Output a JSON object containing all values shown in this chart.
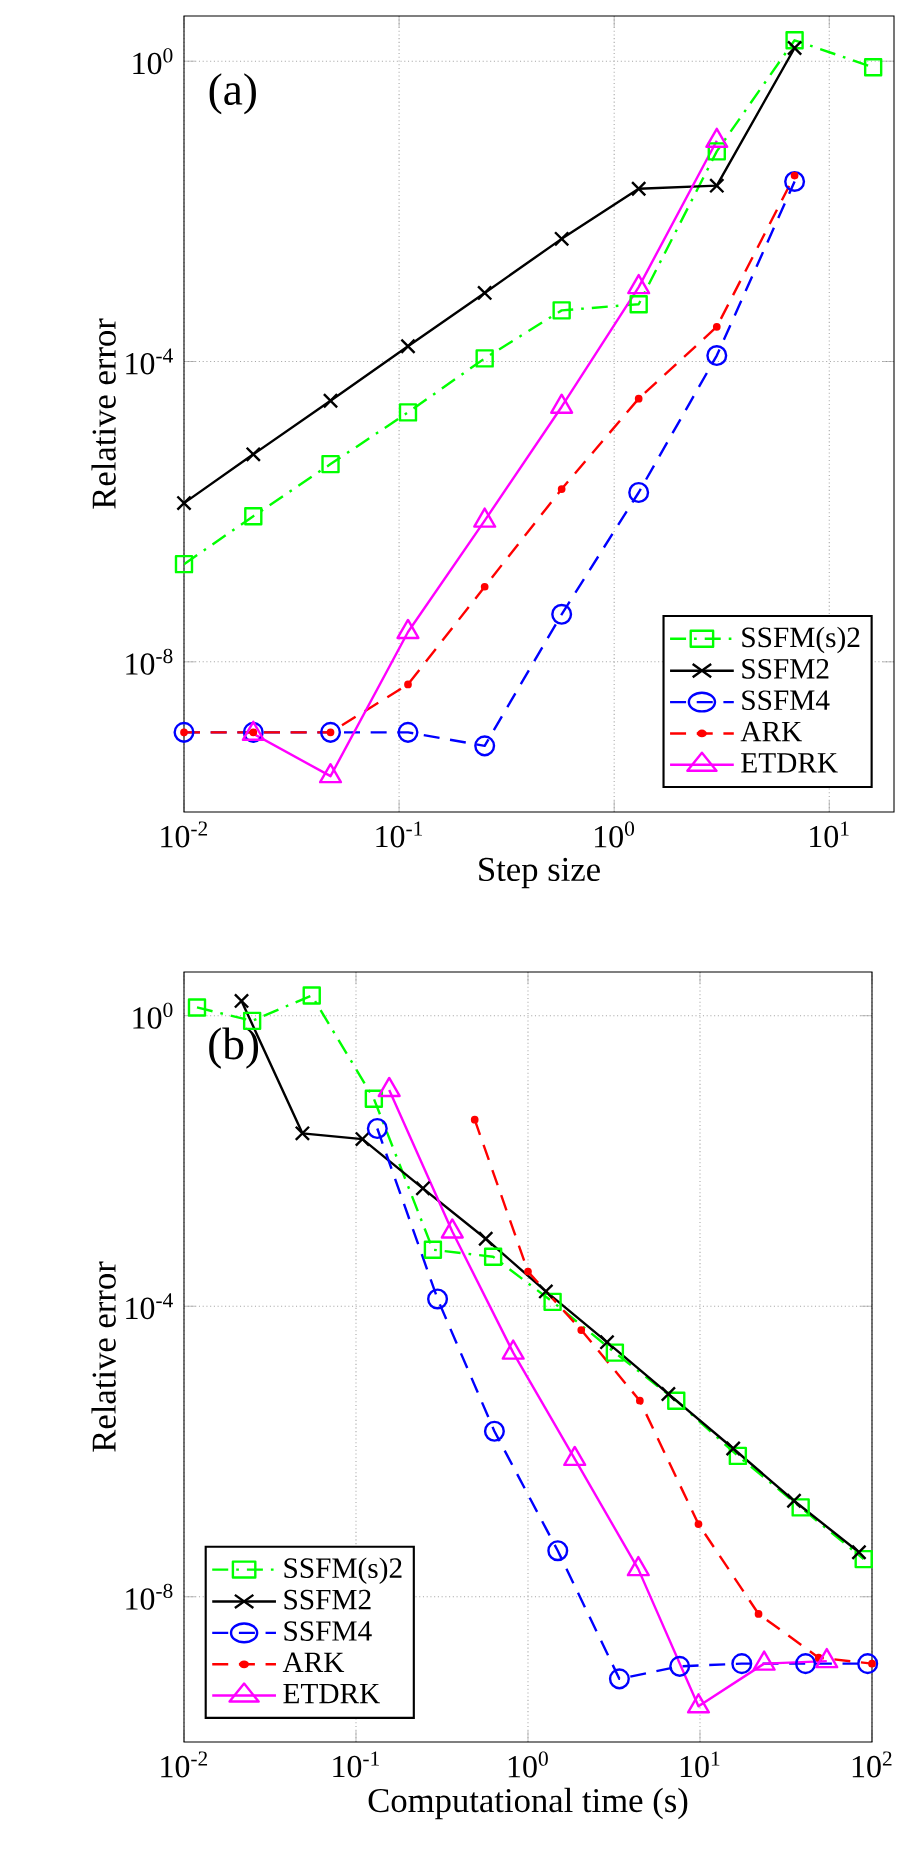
{
  "chart_data": [
    {
      "type": "line",
      "xlabel": "Step size",
      "ylabel": "Relative error",
      "annotations": [
        "(a)"
      ],
      "log": "xy",
      "grid": true,
      "legend": "bottom right",
      "xlim": [
        0.01,
        20
      ],
      "ylim": [
        1e-10,
        4
      ],
      "xticks": [
        {
          "value": 0.01,
          "label": "10$^{-2}$"
        },
        {
          "value": 0.1,
          "label": "10$^{-1}$"
        },
        {
          "value": 1,
          "label": "10$^{0}$"
        },
        {
          "value": 10,
          "label": "10$^{1}$"
        }
      ],
      "yticks": [
        {
          "value": 1e-08,
          "label": "10$^{-8}$"
        },
        {
          "value": 0.0001,
          "label": "10$^{-4}$"
        },
        {
          "value": 1,
          "label": "10$^{0}$"
        }
      ],
      "series": [
        {
          "name": "SSFM(s)2",
          "color": "#00ff00",
          "marker": "square",
          "line_style": "dashdot",
          "x": [
            0.01,
            0.021,
            0.048,
            0.11,
            0.25,
            0.57,
            1.3,
            3.0,
            6.9,
            16
          ],
          "values": [
            2e-07,
            8.7e-07,
            4.3e-06,
            2.1e-05,
            0.00011,
            0.00048,
            0.00058,
            0.063,
            1.9,
            0.83
          ]
        },
        {
          "name": "SSFM2",
          "color": "#000000",
          "marker": "cross",
          "line_style": "solid",
          "x": [
            0.01,
            0.021,
            0.048,
            0.11,
            0.25,
            0.57,
            1.3,
            3.0,
            6.9
          ],
          "values": [
            1.3e-06,
            5.8e-06,
            3e-05,
            0.00016,
            0.00082,
            0.0043,
            0.02,
            0.022,
            1.5
          ]
        },
        {
          "name": "SSFM4",
          "color": "#0000ff",
          "marker": "circle",
          "line_style": "dashed",
          "x": [
            0.01,
            0.021,
            0.048,
            0.11,
            0.25,
            0.57,
            1.3,
            3.0,
            6.9
          ],
          "values": [
            1.15e-09,
            1.15e-09,
            1.15e-09,
            1.15e-09,
            7.6e-10,
            4.3e-08,
            1.8e-06,
            0.00012,
            0.025
          ]
        },
        {
          "name": "ARK",
          "color": "#ff0000",
          "marker": "point",
          "line_style": "dashed",
          "x": [
            0.01,
            0.021,
            0.048,
            0.11,
            0.25,
            0.57,
            1.3,
            3.0,
            6.9
          ],
          "values": [
            1.15e-09,
            1.15e-09,
            1.15e-09,
            5e-09,
            1e-07,
            2e-06,
            3.2e-05,
            0.00029,
            0.03
          ]
        },
        {
          "name": "ETDRK",
          "color": "#ff00ff",
          "marker": "triangle",
          "line_style": "solid",
          "x": [
            0.021,
            0.048,
            0.11,
            0.25,
            0.57,
            1.3,
            3.0
          ],
          "values": [
            1.1e-09,
            3e-10,
            2.5e-08,
            7.6e-07,
            2.5e-05,
            0.00098,
            0.087
          ]
        }
      ]
    },
    {
      "type": "line",
      "xlabel": "Computational time (s)",
      "ylabel": "Relative error",
      "annotations": [
        "(b)"
      ],
      "log": "xy",
      "grid": true,
      "legend": "bottom left",
      "xlim": [
        0.01,
        100
      ],
      "ylim": [
        1e-10,
        4
      ],
      "xticks": [
        {
          "value": 0.01,
          "label": "10$^{-2}$"
        },
        {
          "value": 0.1,
          "label": "10$^{-1}$"
        },
        {
          "value": 1,
          "label": "10$^{0}$"
        },
        {
          "value": 10,
          "label": "10$^{1}$"
        },
        {
          "value": 100,
          "label": "10$^{2}$"
        }
      ],
      "yticks": [
        {
          "value": 1e-08,
          "label": "10$^{-8}$"
        },
        {
          "value": 0.0001,
          "label": "10$^{-4}$"
        },
        {
          "value": 1,
          "label": "10$^{0}$"
        }
      ],
      "series": [
        {
          "name": "SSFM(s)2",
          "color": "#00ff00",
          "marker": "square",
          "line_style": "dashdot",
          "x": [
            0.0119,
            0.0249,
            0.0553,
            0.127,
            0.28,
            0.627,
            1.39,
            3.2,
            7.28,
            16.6,
            38.5,
            89.5
          ],
          "values": [
            1.3,
            0.85,
            1.9,
            0.072,
            0.0006,
            0.00048,
            0.000115,
            2.3e-05,
            5e-06,
            8.7e-07,
            1.7e-07,
            3.3e-08
          ]
        },
        {
          "name": "SSFM2",
          "color": "#000000",
          "marker": "cross",
          "line_style": "solid",
          "x": [
            0.0216,
            0.0488,
            0.109,
            0.245,
            0.568,
            1.27,
            2.88,
            6.55,
            15.6,
            35.2,
            84
          ],
          "values": [
            1.6,
            0.024,
            0.02,
            0.0042,
            0.00085,
            0.00016,
            3.2e-05,
            6.2e-06,
            1.1e-06,
            2.1e-07,
            4.1e-08
          ]
        },
        {
          "name": "SSFM4",
          "color": "#0000ff",
          "marker": "circle",
          "line_style": "dashed",
          "x": [
            0.133,
            0.298,
            0.638,
            1.49,
            3.4,
            7.62,
            17.5,
            41.1,
            94.4
          ],
          "values": [
            0.028,
            0.000126,
            1.9e-06,
            4.3e-08,
            7.4e-10,
            1.1e-09,
            1.2e-09,
            1.2e-09,
            1.2e-09
          ]
        },
        {
          "name": "ARK",
          "color": "#ff0000",
          "marker": "point",
          "line_style": "dashed",
          "x": [
            0.49,
            1.0,
            2.04,
            4.47,
            9.8,
            21.9,
            49,
            100
          ],
          "values": [
            0.037,
            0.0003,
            4.7e-05,
            5e-06,
            1e-07,
            5.8e-09,
            1.45e-09,
            1.2e-09
          ]
        },
        {
          "name": "ETDRK",
          "color": "#ff00ff",
          "marker": "triangle",
          "line_style": "solid",
          "x": [
            0.156,
            0.363,
            0.82,
            1.87,
            4.38,
            9.8,
            23.6,
            54.6
          ],
          "values": [
            0.095,
            0.00107,
            2.3e-05,
            7.9e-07,
            2.4e-08,
            3.1e-10,
            1.2e-09,
            1.3e-09
          ]
        }
      ]
    }
  ]
}
